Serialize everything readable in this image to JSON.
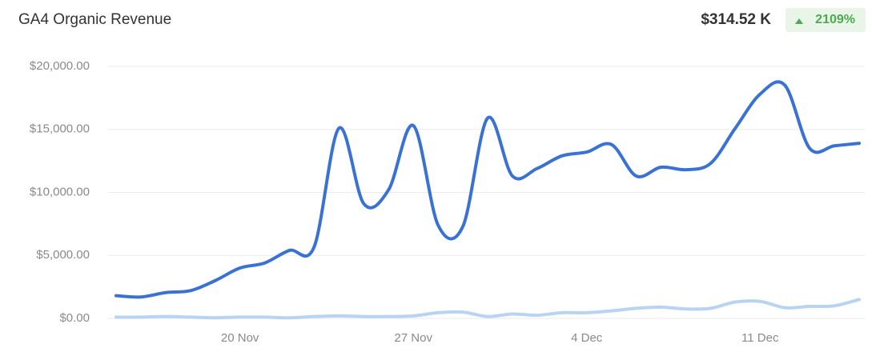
{
  "chart_data": {
    "type": "line",
    "title": "GA4 Organic Revenue",
    "total_label": "$314.52 K",
    "change_label": "2109%",
    "categories": [
      null,
      null,
      null,
      null,
      null,
      "20 Nov",
      null,
      null,
      null,
      null,
      null,
      null,
      "27 Nov",
      null,
      null,
      null,
      null,
      null,
      null,
      "4 Dec",
      null,
      null,
      null,
      null,
      null,
      null,
      "11 Dec",
      null,
      null,
      null,
      null
    ],
    "series": [
      {
        "color": "#3a72d4",
        "values": [
          1800,
          1700,
          2050,
          2200,
          3000,
          4000,
          4400,
          5400,
          5700,
          15100,
          9100,
          10200,
          15300,
          7400,
          7300,
          15900,
          11300,
          11900,
          12900,
          13200,
          13800,
          11300,
          12000,
          11800,
          12300,
          15100,
          17800,
          18500,
          13500,
          13700,
          13900
        ]
      },
      {
        "color": "#b9d3f3",
        "values": [
          100,
          100,
          150,
          100,
          50,
          100,
          100,
          50,
          150,
          200,
          150,
          150,
          200,
          450,
          500,
          150,
          350,
          250,
          450,
          450,
          600,
          800,
          900,
          750,
          800,
          1300,
          1350,
          850,
          950,
          1000,
          1500
        ]
      }
    ],
    "ylim": [
      0,
      20000
    ],
    "yticks": [
      {
        "value": 0,
        "label": "$0.00"
      },
      {
        "value": 5000,
        "label": "$5,000.00"
      },
      {
        "value": 10000,
        "label": "$10,000.00"
      },
      {
        "value": 15000,
        "label": "$15,000.00"
      },
      {
        "value": 20000,
        "label": "$20,000.00"
      }
    ],
    "grid": true
  }
}
